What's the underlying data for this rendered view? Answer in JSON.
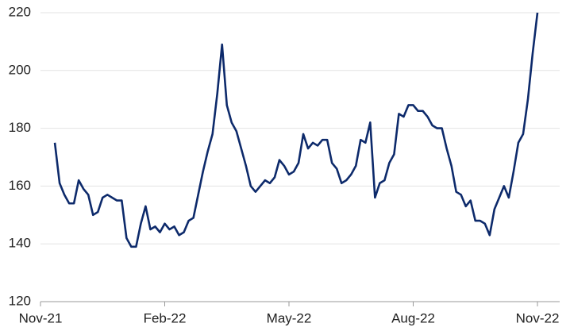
{
  "chart_data": {
    "type": "line",
    "categories": [
      "Nov-21",
      null,
      null,
      null,
      null,
      null,
      null,
      null,
      null,
      null,
      null,
      null,
      null,
      null,
      null,
      null,
      null,
      null,
      null,
      null,
      null,
      null,
      null,
      null,
      null,
      null,
      "Feb-22",
      null,
      null,
      null,
      null,
      null,
      null,
      null,
      null,
      null,
      null,
      null,
      null,
      null,
      null,
      null,
      null,
      null,
      null,
      null,
      null,
      null,
      null,
      null,
      null,
      null,
      "May-22",
      null,
      null,
      null,
      null,
      null,
      null,
      null,
      null,
      null,
      null,
      null,
      null,
      null,
      null,
      null,
      null,
      null,
      null,
      null,
      null,
      null,
      null,
      null,
      null,
      null,
      "Aug-22",
      null,
      null,
      null,
      null,
      null,
      null,
      null,
      null,
      null,
      null,
      null,
      null,
      null,
      null,
      null,
      null,
      null,
      null,
      null,
      null,
      null,
      null,
      null,
      null,
      null,
      "Nov-22"
    ],
    "series": [
      {
        "color": "#0d2a6b",
        "values": [
          null,
          null,
          null,
          175,
          161,
          157,
          154,
          154,
          162,
          159,
          157,
          150,
          151,
          156,
          157,
          156,
          155,
          155,
          142,
          139,
          139,
          147,
          153,
          145,
          146,
          144,
          147,
          145,
          146,
          143,
          144,
          148,
          149,
          157,
          165,
          172,
          178,
          192,
          209,
          188,
          182,
          179,
          173,
          167,
          160,
          158,
          160,
          162,
          161,
          163,
          169,
          167,
          164,
          165,
          168,
          178,
          173,
          175,
          174,
          176,
          176,
          168,
          166,
          161,
          162,
          164,
          167,
          176,
          175,
          182,
          156,
          161,
          162,
          168,
          171,
          185,
          184,
          188,
          188,
          186,
          186,
          184,
          181,
          180,
          180,
          173,
          167,
          158,
          157,
          153,
          155,
          148,
          148,
          147,
          143,
          152,
          156,
          160,
          156,
          165,
          175,
          178,
          190,
          206,
          220
        ]
      }
    ],
    "ylim": [
      120,
      220
    ],
    "yticks": [
      120,
      140,
      160,
      180,
      200,
      220
    ],
    "grid": true
  }
}
